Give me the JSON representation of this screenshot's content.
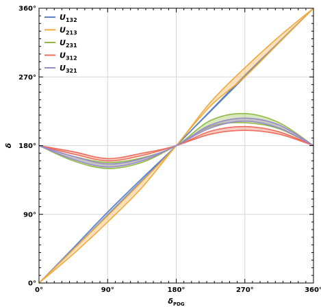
{
  "chart_data": {
    "type": "line",
    "title": "",
    "xlabel": "δPDG",
    "ylabel": "δ",
    "xlim": [
      0,
      360
    ],
    "ylim": [
      0,
      360
    ],
    "x_ticks": [
      0,
      90,
      180,
      270,
      360
    ],
    "y_ticks": [
      0,
      90,
      180,
      270,
      360
    ],
    "x_tick_labels": [
      "0°",
      "90°",
      "180°",
      "270°",
      "360°"
    ],
    "y_tick_labels": [
      "0°",
      "90°",
      "180°",
      "270°",
      "360°"
    ],
    "grid": true,
    "legend_position": "top-left",
    "series": [
      {
        "name": "U132",
        "base": "U",
        "sub": "132",
        "color": "#5b7fc4",
        "bands": [
          {
            "x": [
              0,
              45,
              90,
              135,
              180,
              225,
              270,
              315,
              360
            ],
            "lower": [
              0,
              44,
              89,
              134,
              180,
              225,
              270,
              315,
              360
            ],
            "upper": [
              0,
              46,
              93,
              137,
              180,
              226,
              272,
              316,
              360
            ]
          }
        ]
      },
      {
        "name": "U213",
        "base": "U",
        "sub": "213",
        "color": "#f2a93b",
        "bands": [
          {
            "x": [
              0,
              45,
              90,
              135,
              180,
              225,
              270,
              315,
              360
            ],
            "lower": [
              0,
              38,
              80,
              125,
              180,
              232,
              270,
              315,
              360
            ],
            "upper": [
              0,
              44,
              88,
              133,
              180,
              237,
              282,
              323,
              360
            ]
          }
        ]
      },
      {
        "name": "U231",
        "base": "U",
        "sub": "231",
        "color": "#8fbb45",
        "bands": [
          {
            "x": [
              0,
              45,
              90,
              135,
              180,
              225,
              270,
              315,
              360
            ],
            "lower": [
              180,
              160,
              150,
              158,
              180,
              205,
              210,
              202,
              180
            ],
            "upper": [
              180,
              166,
              158,
              164,
              180,
              213,
              222,
              210,
              180
            ]
          }
        ]
      },
      {
        "name": "U312",
        "base": "U",
        "sub": "312",
        "color": "#ef6b5a",
        "bands": [
          {
            "x": [
              0,
              45,
              90,
              135,
              180,
              225,
              270,
              315,
              360
            ],
            "lower": [
              180,
              169,
              160,
              167,
              180,
              195,
              200,
              195,
              180
            ],
            "upper": [
              180,
              172,
              163,
              170,
              180,
              199,
              205,
              198,
              180
            ]
          }
        ]
      },
      {
        "name": "U321",
        "base": "U",
        "sub": "321",
        "color": "#9b89cc",
        "bands": [
          {
            "x": [
              0,
              45,
              90,
              135,
              180,
              225,
              270,
              315,
              360
            ],
            "lower": [
              180,
              162,
              152,
              160,
              180,
              203,
              212,
              203,
              180
            ],
            "upper": [
              180,
              166,
              156,
              163,
              180,
              207,
              216,
              207,
              180
            ]
          }
        ]
      }
    ]
  }
}
